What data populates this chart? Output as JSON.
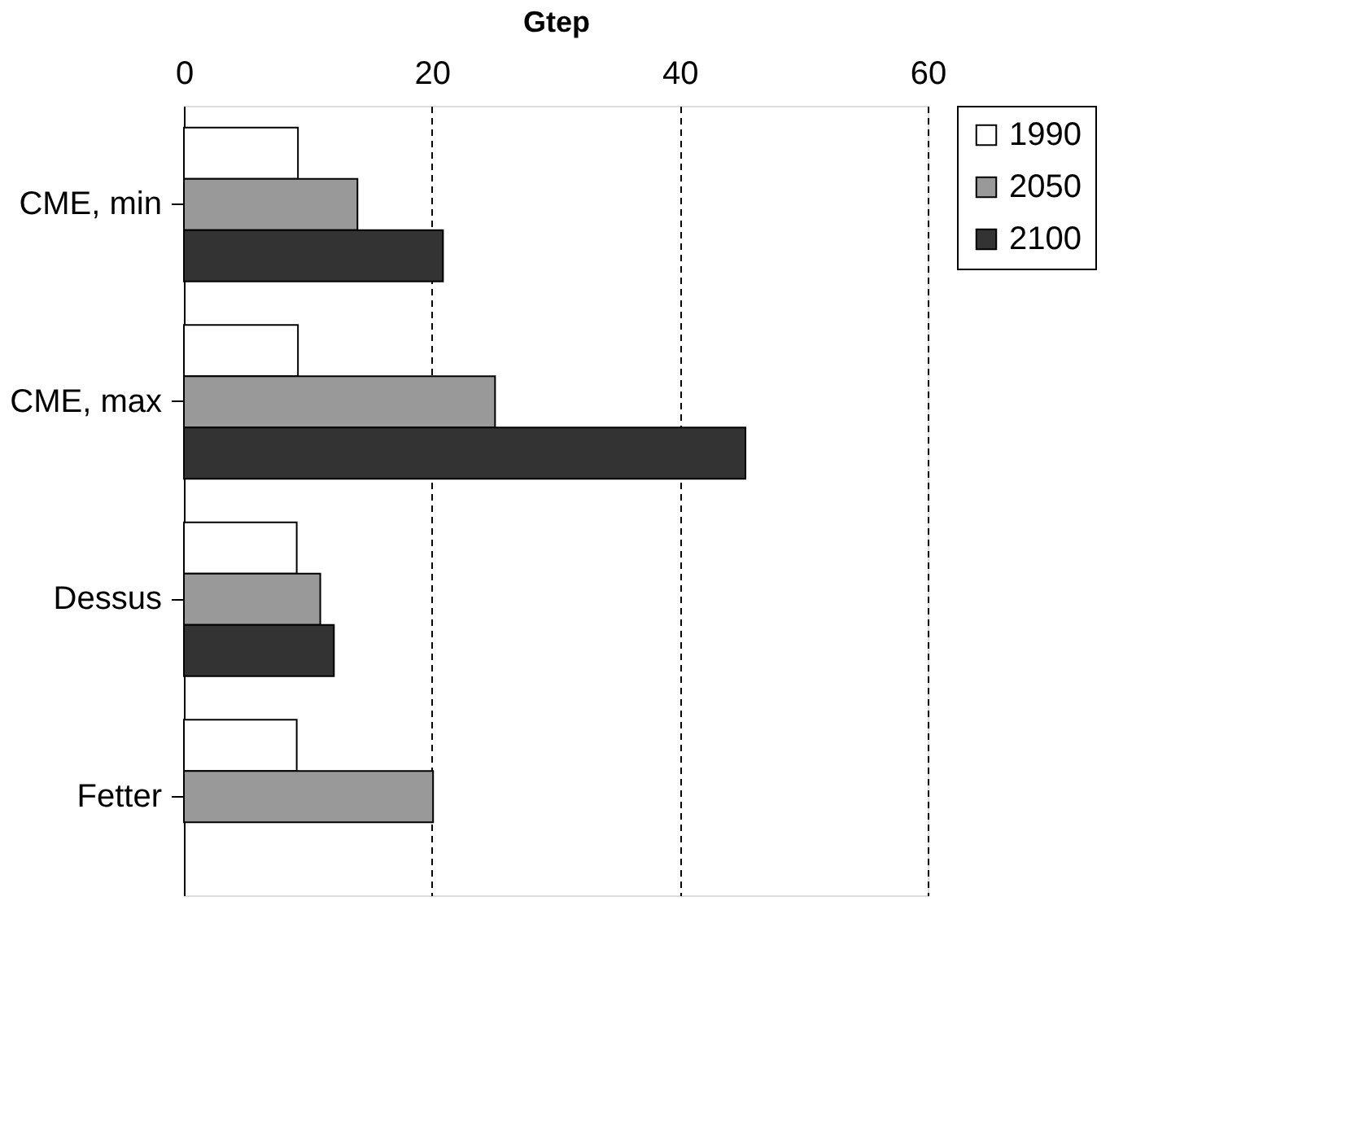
{
  "chart_data": {
    "type": "bar",
    "orientation": "horizontal",
    "xlabel": "Gtep",
    "categories": [
      "CME, min",
      "CME, max",
      "Dessus",
      "Fetter"
    ],
    "series": [
      {
        "name": "1990",
        "color": "#ffffff",
        "values": [
          9.2,
          9.2,
          9.1,
          9.1
        ]
      },
      {
        "name": "2050",
        "color": "#999999",
        "values": [
          14.0,
          25.1,
          11.0,
          20.1
        ]
      },
      {
        "name": "2100",
        "color": "#333333",
        "values": [
          20.9,
          45.3,
          12.1,
          null
        ]
      }
    ],
    "xlim": [
      0,
      60
    ],
    "xticks": [
      0,
      20,
      40,
      60
    ],
    "grid": "x",
    "line_style": "dashed",
    "legend": "right"
  }
}
